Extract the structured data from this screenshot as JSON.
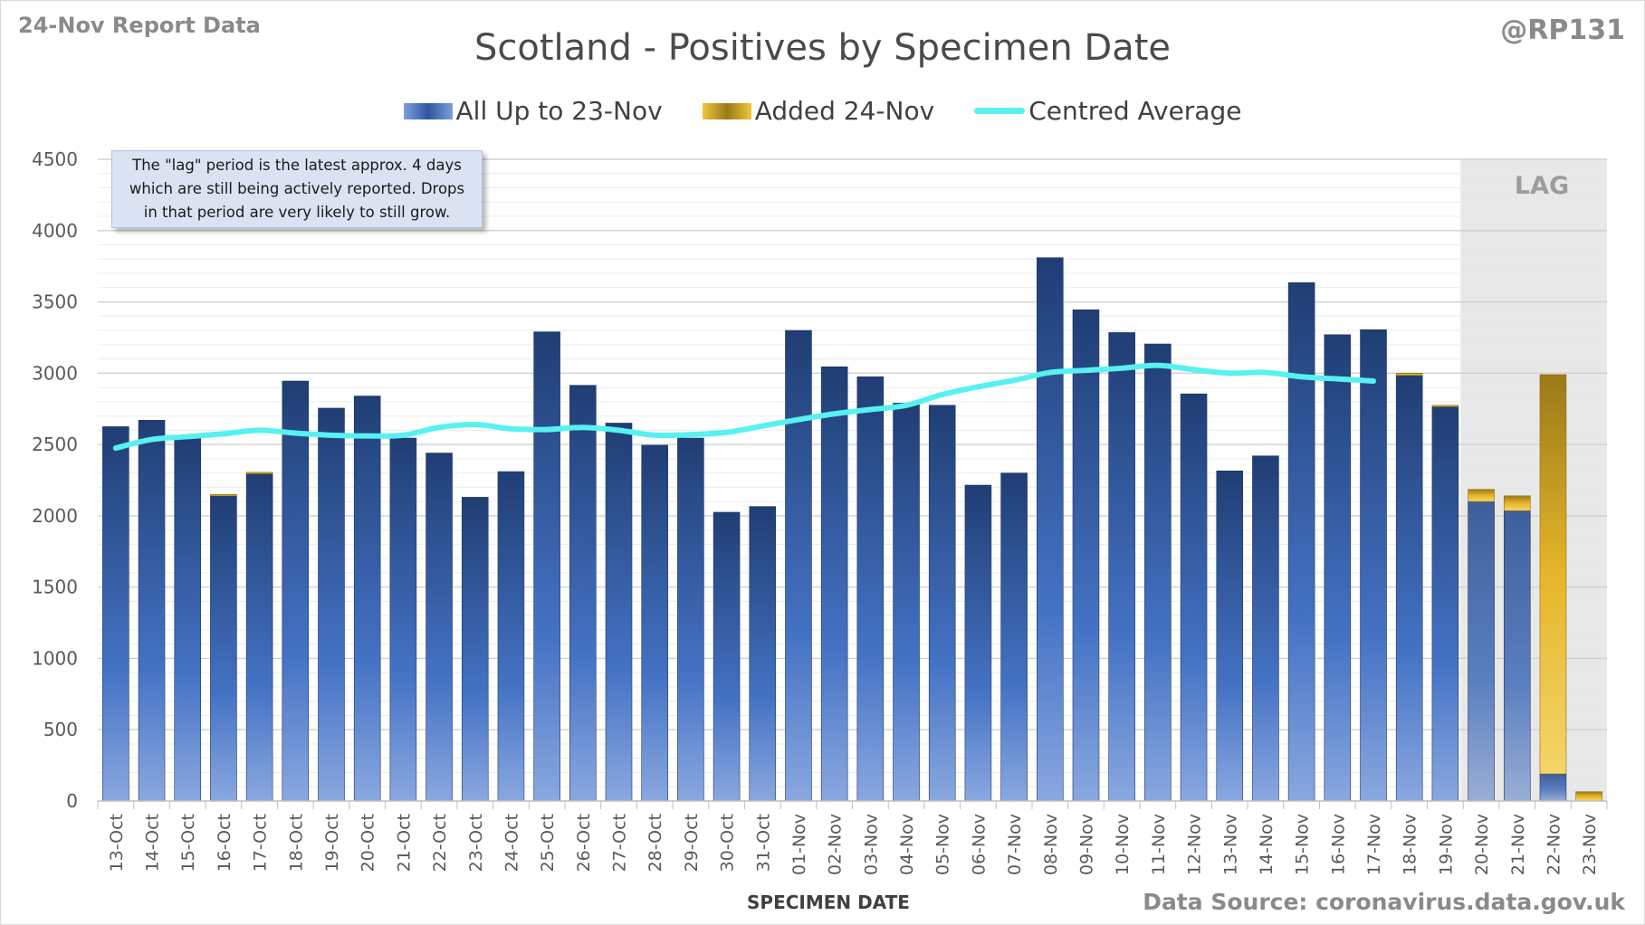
{
  "header": {
    "report_label": "24-Nov Report Data",
    "author": "@RP131"
  },
  "note": {
    "lines": [
      "The \"lag\" period is the latest approx. 4 days",
      "which are still being actively reported.  Drops",
      "in that period are very likely to still grow."
    ]
  },
  "lag_label": "LAG",
  "source": "Data Source: coronavirus.data.gov.uk",
  "colors": {
    "base_bar": "#2f5597",
    "added_bar": "#e6b52a",
    "average_line": "#57f1f1",
    "lag_shading": "#e8e8e8",
    "grid": "#e3e3e3"
  },
  "chart_data": {
    "type": "bar",
    "title": "Scotland - Positives by Specimen Date",
    "xlabel": "SPECIMEN DATE",
    "ylabel": "",
    "ylim": [
      0,
      4500
    ],
    "yticks": [
      0,
      500,
      1000,
      1500,
      2000,
      2500,
      3000,
      3500,
      4000,
      4500
    ],
    "stacked": true,
    "grid": true,
    "legend_position": "top",
    "categories": [
      "13-Oct",
      "14-Oct",
      "15-Oct",
      "16-Oct",
      "17-Oct",
      "18-Oct",
      "19-Oct",
      "20-Oct",
      "21-Oct",
      "22-Oct",
      "23-Oct",
      "24-Oct",
      "25-Oct",
      "26-Oct",
      "27-Oct",
      "28-Oct",
      "29-Oct",
      "30-Oct",
      "31-Oct",
      "01-Nov",
      "02-Nov",
      "03-Nov",
      "04-Nov",
      "05-Nov",
      "06-Nov",
      "07-Nov",
      "08-Nov",
      "09-Nov",
      "10-Nov",
      "11-Nov",
      "12-Nov",
      "13-Nov",
      "14-Nov",
      "15-Nov",
      "16-Nov",
      "17-Nov",
      "18-Nov",
      "19-Nov",
      "20-Nov",
      "21-Nov",
      "22-Nov",
      "23-Nov"
    ],
    "lag_categories": [
      "20-Nov",
      "21-Nov",
      "22-Nov",
      "23-Nov"
    ],
    "series": [
      {
        "name": "All Up to 23-Nov",
        "type": "bar",
        "values": [
          2625,
          2670,
          2560,
          2140,
          2295,
          2945,
          2755,
          2840,
          2545,
          2440,
          2130,
          2310,
          3290,
          2915,
          2650,
          2495,
          2545,
          2025,
          2065,
          3300,
          3045,
          2975,
          2790,
          2775,
          2215,
          2300,
          3810,
          3445,
          3285,
          3205,
          2855,
          2315,
          2420,
          3635,
          3270,
          3305,
          2985,
          2765,
          2100,
          2035,
          190,
          0
        ]
      },
      {
        "name": "Added 24-Nov",
        "type": "bar",
        "values": [
          0,
          0,
          0,
          10,
          10,
          0,
          0,
          0,
          0,
          0,
          0,
          0,
          0,
          0,
          0,
          0,
          0,
          0,
          0,
          0,
          0,
          0,
          0,
          0,
          0,
          0,
          0,
          0,
          0,
          0,
          0,
          0,
          0,
          0,
          0,
          0,
          15,
          10,
          85,
          105,
          2800,
          65
        ]
      },
      {
        "name": "Centred Average",
        "type": "line",
        "values": [
          2475,
          2535,
          2555,
          2575,
          2600,
          2580,
          2565,
          2560,
          2565,
          2620,
          2640,
          2610,
          2605,
          2620,
          2600,
          2565,
          2570,
          2585,
          2630,
          2675,
          2715,
          2745,
          2775,
          2850,
          2905,
          2950,
          3005,
          3020,
          3035,
          3055,
          3025,
          3000,
          3005,
          2975,
          2960,
          2945,
          null,
          null,
          null,
          null,
          null,
          null
        ]
      }
    ]
  }
}
